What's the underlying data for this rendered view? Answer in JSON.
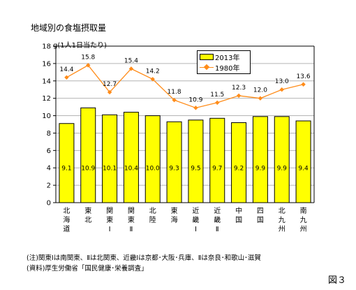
{
  "title": "地域別の食塩摂取量",
  "unit_label": "g(1人1日当たり)",
  "figure_label": "図３",
  "notes": [
    "(注)関東Ⅰは南関東、Ⅱは北関東、近畿Ⅰは京都･大阪･兵庫、Ⅱは奈良･和歌山･滋賀",
    "(資料)厚生労働省「国民健康･栄養調査」"
  ],
  "colors": {
    "bar": "#ffff00",
    "line": "#ff8c1a"
  },
  "chart_data": {
    "type": "bar",
    "categories": [
      "北海道",
      "東北",
      "関東Ⅰ",
      "関東Ⅱ",
      "北陸",
      "東海",
      "近畿Ⅰ",
      "近畿Ⅱ",
      "中国",
      "四国",
      "北九州",
      "南九州"
    ],
    "category_labels": [
      [
        "北",
        "海",
        "道"
      ],
      [
        "東",
        "北"
      ],
      [
        "関",
        "東",
        "Ⅰ"
      ],
      [
        "関",
        "東",
        "Ⅱ"
      ],
      [
        "北",
        "陸"
      ],
      [
        "東",
        "海"
      ],
      [
        "近",
        "畿",
        "Ⅰ"
      ],
      [
        "近",
        "畿",
        "Ⅱ"
      ],
      [
        "中",
        "国"
      ],
      [
        "四",
        "国"
      ],
      [
        "北",
        "九",
        "州"
      ],
      [
        "南",
        "九",
        "州"
      ]
    ],
    "series": [
      {
        "name": "2013年",
        "type": "bar",
        "values": [
          9.1,
          10.9,
          10.1,
          10.4,
          10.0,
          9.3,
          9.5,
          9.7,
          9.2,
          9.9,
          9.9,
          9.4
        ]
      },
      {
        "name": "1980年",
        "type": "line",
        "values": [
          14.4,
          15.8,
          12.7,
          15.4,
          14.2,
          11.8,
          10.9,
          11.5,
          12.3,
          12.0,
          13.0,
          13.6
        ]
      }
    ],
    "ylim": [
      0,
      18
    ],
    "yticks": [
      0,
      2,
      4,
      6,
      8,
      10,
      12,
      14,
      16,
      18
    ],
    "grid": true,
    "legend_position": "top-right"
  }
}
